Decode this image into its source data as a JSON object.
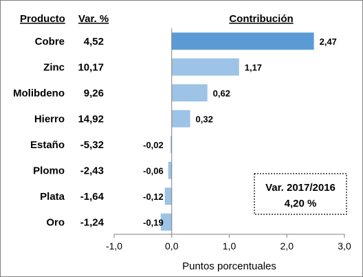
{
  "chart_data": {
    "type": "bar",
    "orientation": "horizontal",
    "headers": {
      "product": "Producto",
      "variation": "Var. %",
      "contribution": "Contribución"
    },
    "categories": [
      "Cobre",
      "Zinc",
      "Molibdeno",
      "Hierro",
      "Estaño",
      "Plomo",
      "Plata",
      "Oro"
    ],
    "variation_labels": [
      "4,52",
      "10,17",
      "9,26",
      "14,92",
      "-5,32",
      "-2,43",
      "-1,64",
      "-1,24"
    ],
    "values": [
      2.47,
      1.17,
      0.62,
      0.32,
      -0.02,
      -0.06,
      -0.12,
      -0.19
    ],
    "value_labels": [
      "2,47",
      "1,17",
      "0,62",
      "0,32",
      "-0,02",
      "-0,06",
      "-0,12",
      "-0,19"
    ],
    "xlabel": "Puntos porcentuales",
    "xlim": [
      -1.0,
      3.0
    ],
    "xticks": [
      -1.0,
      0.0,
      1.0,
      2.0,
      3.0
    ],
    "xtick_labels": [
      "-1,0",
      "0,0",
      "1,0",
      "2,0",
      "3,0"
    ],
    "grid": false,
    "colors": {
      "highlight": "#5b9bd5",
      "default": "#9dc3e6",
      "axis": "#7f7f7f"
    },
    "annotation": {
      "line1": "Var. 2017/2016",
      "line2": "4,20 %"
    }
  }
}
